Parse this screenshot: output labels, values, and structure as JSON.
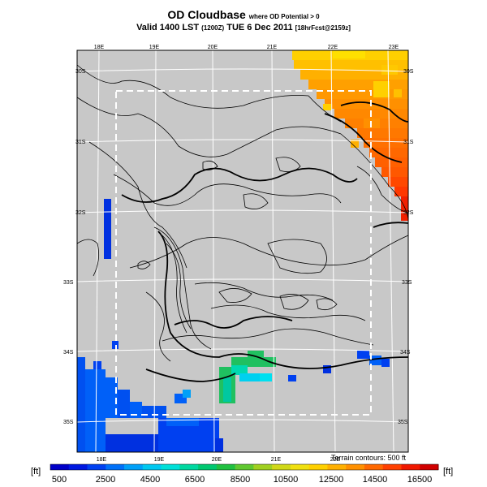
{
  "title": {
    "main": "OD Cloudbase",
    "qualifier": "where OD Potential > 0"
  },
  "subtitle": {
    "valid": "Valid 1400 LST",
    "zulu": "(1200Z)",
    "date": "TUE 6 Dec 2011",
    "forecast": "[18hrFcst@2159z]"
  },
  "map": {
    "top_lon_labels": [
      "18E",
      "19E",
      "20E",
      "21E",
      "22E",
      "23E"
    ],
    "bottom_lon_labels": [
      "18E",
      "19E",
      "20E",
      "21E",
      "22E"
    ],
    "left_lat_labels": [
      "30S",
      "31S",
      "32S",
      "33S",
      "34S",
      "35S"
    ],
    "right_lat_labels": [
      "30S",
      "31S",
      "32S",
      "33S",
      "34S",
      "35S"
    ],
    "terrain_note": "Terrain contours: 500 ft",
    "colors": {
      "background": "#c8c8c8",
      "grid": "#ffffff",
      "contour": "#000000",
      "subdomain_box": "#ffffff"
    }
  },
  "colorbar": {
    "unit_left": "[ft]",
    "unit_right": "[ft]",
    "tick_labels": [
      "500",
      "2500",
      "4500",
      "6500",
      "8500",
      "10500",
      "12500",
      "14500",
      "16500"
    ],
    "colors": [
      "#0000c8",
      "#0018e0",
      "#0040f0",
      "#0070f8",
      "#00a0f8",
      "#00c8f0",
      "#00e0d8",
      "#00d8a0",
      "#00c870",
      "#20c040",
      "#60c830",
      "#a0d020",
      "#d0d818",
      "#f0e010",
      "#ffd000",
      "#ffb000",
      "#ff9000",
      "#ff6800",
      "#ff4000",
      "#f01800",
      "#d00000"
    ]
  }
}
